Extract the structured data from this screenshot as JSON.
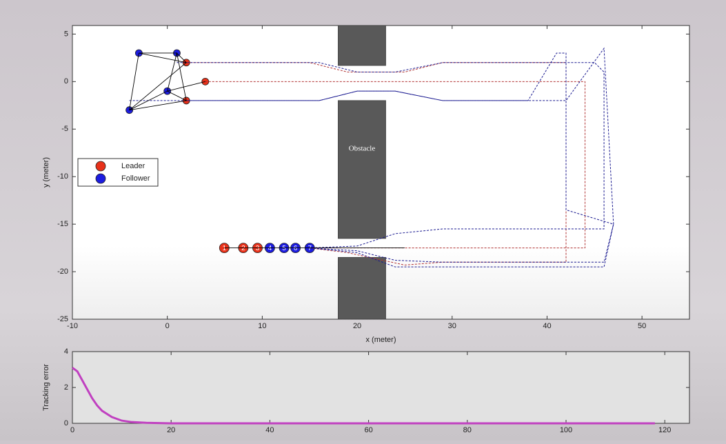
{
  "chart_data": [
    {
      "type": "formation",
      "xlabel": "x (meter)",
      "ylabel": "y (meter)",
      "xlim": [
        -10,
        55
      ],
      "ylim": [
        -25,
        5.9
      ],
      "xticks": [
        -10,
        0,
        10,
        20,
        30,
        40,
        50
      ],
      "yticks": [
        -25,
        -20,
        -15,
        -10,
        -5,
        0,
        5
      ],
      "legend": "left",
      "annotation": "Obstacle",
      "obstacles": [
        {
          "x": [
            18,
            23
          ],
          "y": [
            1.7,
            5.9
          ]
        },
        {
          "x": [
            18,
            23
          ],
          "y": [
            -16.5,
            -2
          ]
        },
        {
          "x": [
            18,
            23
          ],
          "y": [
            -25,
            -18.5
          ]
        }
      ],
      "trajectories": [
        {
          "color": "#b03030",
          "dash": true,
          "x": [
            4,
            44,
            44,
            15
          ],
          "y": [
            0,
            0,
            -17.5,
            -17.5
          ]
        },
        {
          "color": "#b03030",
          "dash": true,
          "x": [
            2,
            15,
            19,
            25,
            29,
            42,
            42,
            29,
            25,
            19,
            15
          ],
          "y": [
            2,
            2,
            1,
            1,
            2,
            2,
            -19,
            -19,
            -19.3,
            -18,
            -17.5
          ]
        },
        {
          "color": "#1a1a90",
          "dash": true,
          "x": [
            1,
            16,
            20,
            24,
            29,
            45,
            46,
            46,
            29,
            24,
            20,
            15
          ],
          "y": [
            2,
            2,
            1,
            1,
            2,
            2,
            1,
            -15.5,
            -15.5,
            -16,
            -17.3,
            -17.5
          ]
        },
        {
          "color": "#1a1a90",
          "dash": true,
          "x": [
            -4,
            16,
            20,
            24,
            29,
            38,
            41,
            42,
            42,
            47,
            46,
            29,
            24,
            20,
            15
          ],
          "y": [
            -2,
            -2,
            -1,
            -1,
            -2,
            -2,
            3,
            3,
            -13.5,
            -15,
            -19.5,
            -19.5,
            -19.5,
            -18,
            -17.5
          ]
        },
        {
          "color": "#1a1a90",
          "dash": true,
          "x": [
            2,
            16,
            20,
            24,
            29,
            42,
            46,
            47,
            46,
            29,
            24,
            20,
            15
          ],
          "y": [
            -2,
            -2,
            -1,
            -1,
            -2,
            -2,
            3.5,
            -15,
            -19,
            -19,
            -18.8,
            -17.8,
            -17.5
          ]
        },
        {
          "color": "#000000",
          "dash": false,
          "x": [
            -3,
            1,
            2,
            -3,
            null,
            1,
            0,
            2,
            null,
            -3,
            -4,
            0,
            4,
            null,
            -4,
            2,
            0,
            null,
            -4,
            2,
            1,
            2,
            null,
            6,
            25
          ],
          "y": [
            3,
            3,
            2,
            3,
            null,
            3,
            -1,
            -2,
            null,
            3,
            -3,
            -1,
            0,
            null,
            -3,
            -2,
            -1,
            null,
            -3,
            2,
            3,
            -2,
            null,
            -17.5,
            -17.5
          ]
        }
      ],
      "series": [
        {
          "name": "Leader",
          "color": "#e8311a",
          "x": [
            2,
            4,
            2,
            6,
            8,
            9.5
          ],
          "values": [
            2,
            0,
            -2,
            -17.5,
            -17.5,
            -17.5
          ],
          "labels": [
            null,
            null,
            null,
            "1",
            "2",
            "3"
          ]
        },
        {
          "name": "Follower",
          "color": "#1c1ce0",
          "x": [
            -3,
            1,
            0,
            -4,
            10.8,
            12.3,
            13.5,
            15
          ],
          "values": [
            3,
            3,
            -1,
            -3,
            -17.5,
            -17.5,
            -17.5,
            -17.5
          ],
          "labels": [
            null,
            null,
            null,
            null,
            "4",
            "5",
            "6",
            "7"
          ]
        }
      ]
    },
    {
      "type": "line",
      "ylabel": "Tracking error",
      "xlim": [
        0,
        125
      ],
      "ylim": [
        0,
        4
      ],
      "xticks": [
        0,
        20,
        40,
        60,
        80,
        100,
        120
      ],
      "yticks": [
        0,
        2,
        4
      ],
      "color": "#c040c0",
      "x": [
        0,
        1,
        2,
        3,
        4,
        5,
        6,
        8,
        10,
        12,
        15,
        20,
        40,
        60,
        80,
        100,
        118
      ],
      "values": [
        3.1,
        2.9,
        2.4,
        1.9,
        1.4,
        1.0,
        0.7,
        0.35,
        0.15,
        0.07,
        0.03,
        0,
        0,
        0,
        0,
        0,
        0
      ]
    }
  ]
}
